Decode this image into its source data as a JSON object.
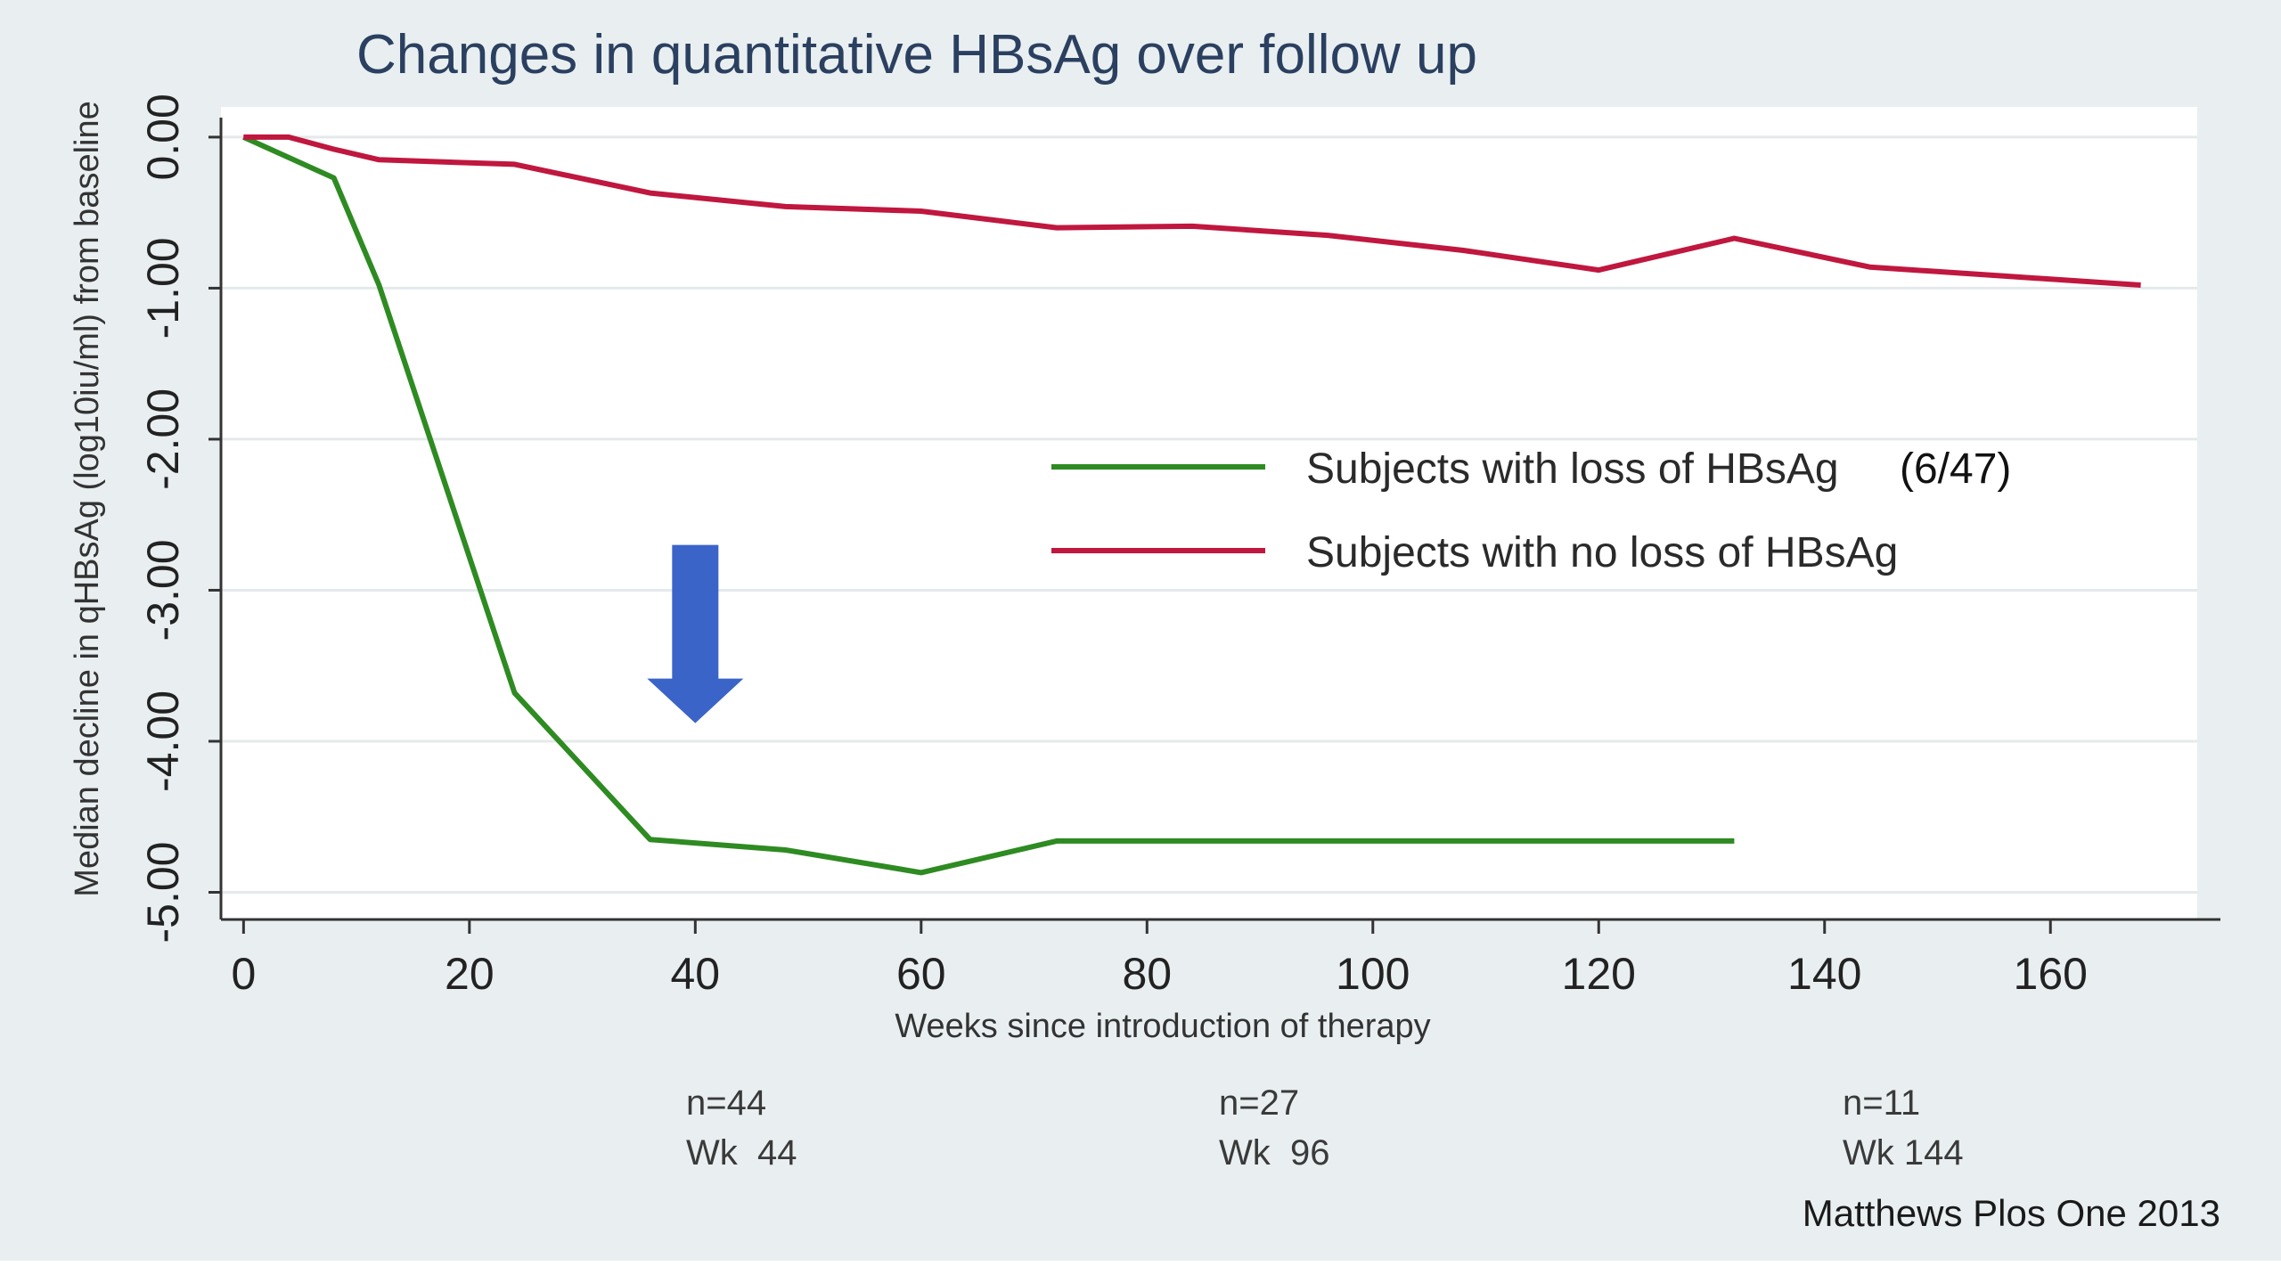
{
  "chart_data": {
    "type": "line",
    "title": "Changes in quantitative HBsAg over follow up",
    "xlabel": "Weeks since introduction of therapy",
    "ylabel": "Median decline in qHBsAg (log10iu/ml) from baseline",
    "xlim": [
      -2,
      173
    ],
    "ylim": [
      -5.18,
      0.2
    ],
    "x_ticks": [
      0,
      20,
      40,
      60,
      80,
      100,
      120,
      140,
      160
    ],
    "y_ticks": [
      0,
      -1,
      -2,
      -3,
      -4,
      -5
    ],
    "y_tick_labels": [
      "0.00",
      "-1.00",
      "-2.00",
      "-3.00",
      "-4.00",
      "-5.00"
    ],
    "grid": true,
    "legend_position": "center-right",
    "series": [
      {
        "name": "Subjects with loss of HBsAg",
        "name_suffix": "(6/47)",
        "color": "#2e8b22",
        "x": [
          0,
          8,
          12,
          24,
          36,
          48,
          60,
          72,
          84,
          96,
          108,
          120,
          132
        ],
        "y": [
          0,
          -0.27,
          -0.98,
          -3.68,
          -4.65,
          -4.72,
          -4.87,
          -4.66,
          -4.66,
          -4.66,
          -4.66,
          -4.66,
          -4.66
        ]
      },
      {
        "name": "Subjects with no loss of HBsAg",
        "color": "#c0173f",
        "x": [
          0,
          4,
          8,
          12,
          24,
          36,
          48,
          60,
          72,
          84,
          96,
          108,
          120,
          132,
          144,
          156,
          168
        ],
        "y": [
          0,
          0,
          -0.08,
          -0.15,
          -0.18,
          -0.37,
          -0.46,
          -0.49,
          -0.6,
          -0.59,
          -0.65,
          -0.75,
          -0.88,
          -0.67,
          -0.86,
          -0.92,
          -0.98
        ]
      }
    ],
    "annotations": [
      {
        "line1": "n=44",
        "line2": "Wk  44"
      },
      {
        "line1": "n=27",
        "line2": "Wk  96"
      },
      {
        "line1": "n=11",
        "line2": "Wk 144"
      }
    ],
    "arrow": {
      "x": 40,
      "y_top": -2.7,
      "y_bottom": -3.88,
      "color": "#3b64c9"
    }
  },
  "credit": "Matthews Plos One 2013"
}
